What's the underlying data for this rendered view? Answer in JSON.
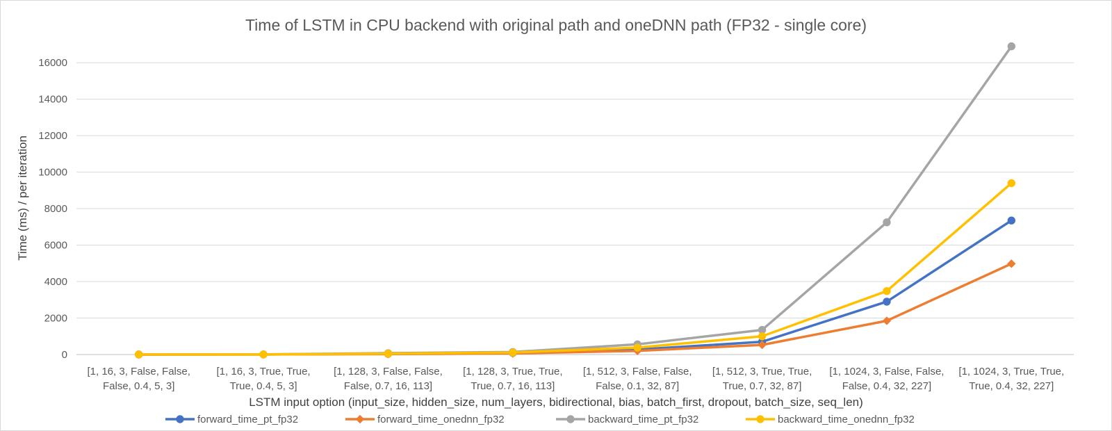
{
  "chart_data": {
    "type": "line",
    "title": "Time of LSTM in CPU backend with original path and oneDNN path (FP32 - single core)",
    "xlabel": "LSTM input option (input_size, hidden_size, num_layers, bidirectional, bias, batch_first, dropout, batch_size, seq_len)",
    "ylabel": "Time (ms) / per iteration",
    "ylim": [
      0,
      17000
    ],
    "yticks": [
      0,
      2000,
      4000,
      6000,
      8000,
      10000,
      12000,
      14000,
      16000
    ],
    "grid": true,
    "legend_position": "bottom",
    "categories": [
      [
        "[1, 16, 3, False, False,",
        "False, 0.4, 5, 3]"
      ],
      [
        "[1, 16, 3, True, True,",
        "True, 0.4, 5, 3]"
      ],
      [
        "[1, 128, 3, False, False,",
        "False, 0.7, 16, 113]"
      ],
      [
        "[1, 128, 3, True, True,",
        "True, 0.7, 16, 113]"
      ],
      [
        "[1, 512, 3, False, False,",
        "False, 0.1, 32, 87]"
      ],
      [
        "[1, 512, 3, True, True,",
        "True, 0.7, 32, 87]"
      ],
      [
        "[1, 1024, 3, False, False,",
        "False, 0.4, 32, 227]"
      ],
      [
        "[1, 1024, 3, True, True,",
        "True, 0.4, 32, 227]"
      ]
    ],
    "series": [
      {
        "name": "forward_time_pt_fp32",
        "color": "#4472c4",
        "marker": "circle",
        "values": [
          2,
          4,
          40,
          90,
          270,
          700,
          2900,
          7350
        ]
      },
      {
        "name": "forward_time_onednn_fp32",
        "color": "#ed7d31",
        "marker": "diamond",
        "values": [
          1,
          3,
          25,
          60,
          200,
          530,
          1850,
          4980
        ]
      },
      {
        "name": "backward_time_pt_fp32",
        "color": "#a5a5a5",
        "marker": "circle",
        "values": [
          5,
          8,
          75,
          140,
          560,
          1350,
          7250,
          16900
        ]
      },
      {
        "name": "backward_time_onednn_fp32",
        "color": "#ffc000",
        "marker": "circle",
        "values": [
          3,
          5,
          50,
          110,
          380,
          1000,
          3480,
          9400
        ]
      }
    ]
  }
}
